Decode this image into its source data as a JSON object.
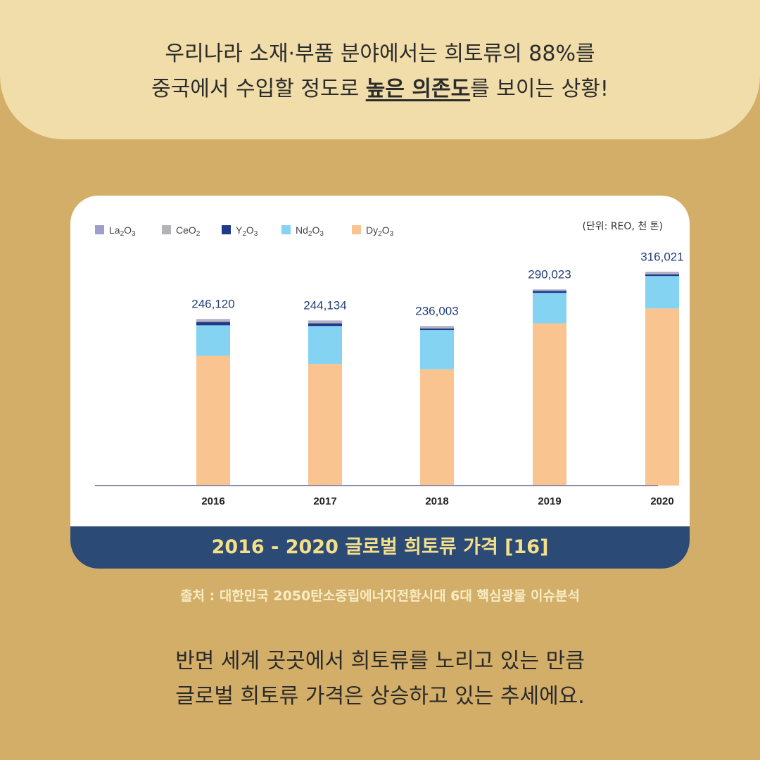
{
  "header": {
    "line1": "우리나라 소재·부품 분야에서는 희토류의 88%를",
    "line2_before": "중국에서 수입할 정도로 ",
    "line2_emphasis": "높은 의존도",
    "line2_after": "를 보이는 상황!"
  },
  "chart_data": {
    "type": "bar",
    "stacked": true,
    "unit_label": "(단위: REO, 천 톤)",
    "categories": [
      "2016",
      "2017",
      "2018",
      "2019",
      "2020"
    ],
    "totals_labels": [
      "246,120",
      "244,134",
      "236,003",
      "290,023",
      "316,021"
    ],
    "totals": [
      246120,
      244134,
      236003,
      290023,
      316021
    ],
    "ylim": [
      0,
      330000
    ],
    "legend_position": "top-left",
    "series": [
      {
        "name": "Dy2O3",
        "color": "#f9c48f",
        "values": [
          192000,
          180000,
          172000,
          240000,
          262000
        ]
      },
      {
        "name": "Nd2O3",
        "color": "#84d3f3",
        "values": [
          45000,
          56000,
          58000,
          45000,
          48000
        ]
      },
      {
        "name": "Y2O3",
        "color": "#1f3a8c",
        "values": [
          5000,
          4000,
          2500,
          3000,
          2500
        ]
      },
      {
        "name": "CeO2",
        "color": "#b4b4b8",
        "values": [
          2500,
          3000,
          2500,
          1000,
          2000
        ]
      },
      {
        "name": "La2O3",
        "color": "#9e9ec8",
        "values": [
          1620,
          1134,
          1003,
          1023,
          1521
        ]
      }
    ],
    "legend_labels": [
      {
        "base": "La",
        "sub1": "2",
        "mid": "O",
        "sub2": "3",
        "color": "#9e9ec8"
      },
      {
        "base": "Ce",
        "sub1": "",
        "mid": "O",
        "sub2": "2",
        "color": "#b4b4b8"
      },
      {
        "base": "Y",
        "sub1": "2",
        "mid": "O",
        "sub2": "3",
        "color": "#1f3a8c"
      },
      {
        "base": "Nd",
        "sub1": "2",
        "mid": "O",
        "sub2": "3",
        "color": "#84d3f3"
      },
      {
        "base": "Dy",
        "sub1": "2",
        "mid": "O",
        "sub2": "3",
        "color": "#f9c48f"
      }
    ]
  },
  "caption": "2016 - 2020 글로벌 희토류 가격 [16]",
  "source": "출처 : 대한민국 2050탄소중립에너지전환시대 6대 핵심광물 이슈분석",
  "footer": {
    "line1": "반면 세계 곳곳에서 희토류를 노리고 있는 만큼",
    "line2": "글로벌 희토류 가격은 상승하고 있는 추세에요."
  },
  "colors": {
    "background": "#d3ae69",
    "banner": "#f0ddaa",
    "caption_bar": "#2c4a76",
    "caption_text": "#f5e08a",
    "total_label": "#22407a"
  }
}
